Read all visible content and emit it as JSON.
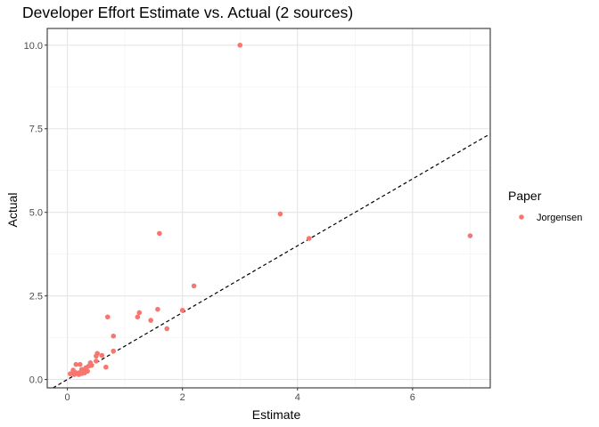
{
  "chart_data": {
    "type": "scatter",
    "title": "Developer Effort Estimate vs. Actual (2 sources)",
    "xlabel": "Estimate",
    "ylabel": "Actual",
    "xlim": [
      -0.35,
      7.35
    ],
    "ylim": [
      -0.25,
      10.5
    ],
    "x_ticks": [
      0,
      2,
      4,
      6
    ],
    "y_ticks": [
      0.0,
      2.5,
      5.0,
      7.5,
      10.0
    ],
    "y_tick_labels": [
      "0.0",
      "2.5",
      "5.0",
      "7.5",
      "10.0"
    ],
    "grid": true,
    "reference_line": {
      "style": "dashed",
      "slope": 1,
      "intercept": 0
    },
    "legend": {
      "title": "Paper",
      "placement": "right",
      "entries": [
        {
          "label": "Jorgensen",
          "color": "#F8766D"
        }
      ]
    },
    "series": [
      {
        "name": "Jorgensen",
        "color": "#F8766D",
        "points": [
          [
            3.0,
            10.0
          ],
          [
            3.7,
            4.95
          ],
          [
            1.6,
            4.37
          ],
          [
            7.0,
            4.3
          ],
          [
            4.2,
            4.22
          ],
          [
            2.2,
            2.8
          ],
          [
            1.57,
            2.1
          ],
          [
            2.0,
            2.07
          ],
          [
            1.25,
            2.0
          ],
          [
            1.22,
            1.87
          ],
          [
            0.7,
            1.87
          ],
          [
            1.45,
            1.77
          ],
          [
            1.73,
            1.52
          ],
          [
            0.8,
            1.3
          ],
          [
            0.8,
            0.85
          ],
          [
            0.6,
            0.72
          ],
          [
            0.52,
            0.78
          ],
          [
            0.5,
            0.7
          ],
          [
            0.5,
            0.55
          ],
          [
            0.4,
            0.5
          ],
          [
            0.37,
            0.4
          ],
          [
            0.32,
            0.35
          ],
          [
            0.22,
            0.45
          ],
          [
            0.15,
            0.45
          ],
          [
            0.67,
            0.37
          ],
          [
            0.25,
            0.3
          ],
          [
            0.35,
            0.25
          ],
          [
            0.3,
            0.2
          ],
          [
            0.28,
            0.25
          ],
          [
            0.2,
            0.2
          ],
          [
            0.15,
            0.2
          ],
          [
            0.1,
            0.28
          ],
          [
            0.1,
            0.2
          ],
          [
            0.05,
            0.17
          ],
          [
            0.2,
            0.15
          ],
          [
            0.12,
            0.15
          ],
          [
            0.25,
            0.18
          ],
          [
            0.42,
            0.42
          ]
        ]
      }
    ]
  }
}
